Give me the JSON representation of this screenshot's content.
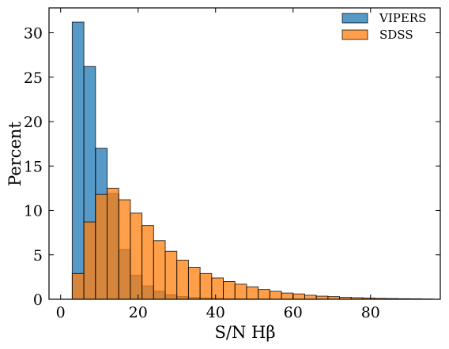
{
  "chart_data": {
    "type": "bar",
    "subtype": "histogram",
    "title": "",
    "xlabel": "S/N Hβ",
    "ylabel": "Percent",
    "xlim": [
      -3,
      98
    ],
    "ylim": [
      0,
      32.8
    ],
    "xticks": [
      0,
      20,
      40,
      60,
      80
    ],
    "yticks": [
      0,
      5,
      10,
      15,
      20,
      25,
      30
    ],
    "grid": false,
    "legend_position": "top-right",
    "bin_edges": [
      3,
      6,
      9,
      12,
      15,
      18,
      21,
      24,
      27,
      30,
      33,
      36,
      39,
      42,
      45,
      48,
      51,
      54,
      57,
      60,
      63,
      66,
      69,
      72,
      75,
      78,
      81,
      84,
      87,
      90,
      93,
      96
    ],
    "series": [
      {
        "name": "VIPERS",
        "color": "#1f77b4",
        "opacity": 0.75,
        "values": [
          31.2,
          26.2,
          17.0,
          11.9,
          5.6,
          2.7,
          1.5,
          0.9,
          0.5,
          0.3,
          0.2,
          0.15,
          0.1,
          0.05,
          0.05,
          0.03,
          0.02,
          0.01,
          0,
          0,
          0,
          0,
          0,
          0,
          0,
          0,
          0,
          0,
          0,
          0,
          0
        ]
      },
      {
        "name": "SDSS",
        "color": "#ff7f0e",
        "opacity": 0.75,
        "values": [
          2.9,
          8.7,
          11.8,
          12.5,
          11.2,
          9.7,
          8.3,
          6.6,
          5.4,
          4.4,
          3.6,
          2.9,
          2.4,
          2.0,
          1.7,
          1.4,
          1.1,
          0.9,
          0.7,
          0.6,
          0.45,
          0.35,
          0.3,
          0.22,
          0.18,
          0.14,
          0.1,
          0.08,
          0.06,
          0.05,
          0.03
        ]
      }
    ]
  }
}
